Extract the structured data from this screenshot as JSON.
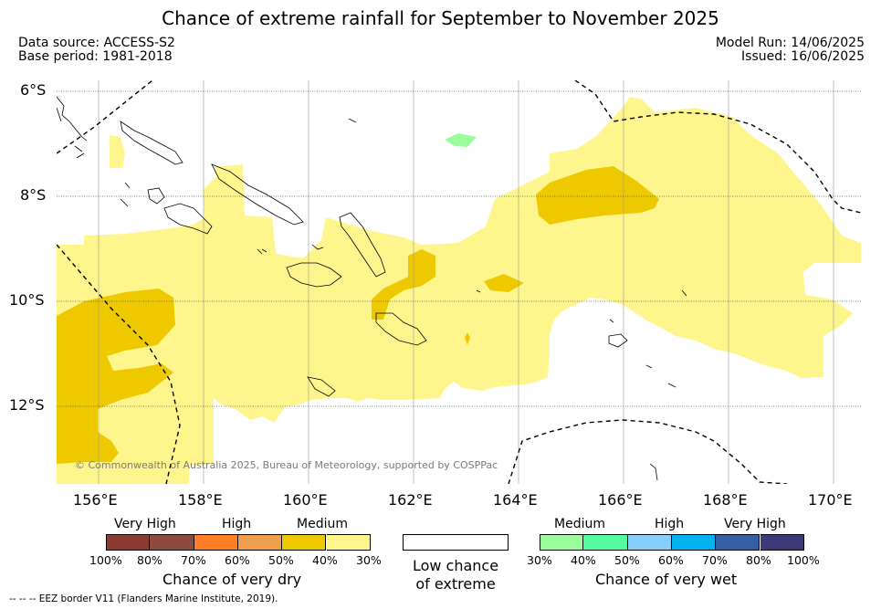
{
  "title": "Chance of extreme rainfall for September to November 2025",
  "meta": {
    "data_source": "Data source: ACCESS-S2",
    "base_period": "Base period: 1981-2018",
    "model_run": "Model Run: 14/06/2025",
    "issued": "Issued: 16/06/2025"
  },
  "map": {
    "lat_labels": [
      "6°S",
      "8°S",
      "10°S",
      "12°S"
    ],
    "lon_labels": [
      "156°E",
      "158°E",
      "160°E",
      "162°E",
      "164°E",
      "166°E",
      "168°E",
      "170°E"
    ],
    "copyright": "© Commonwealth of Australia 2025, Bureau of Meteorology, supported by COSPPac"
  },
  "legend": {
    "dry": {
      "categories": [
        "Very High",
        "High",
        "Medium"
      ],
      "ticks": [
        "100%",
        "80%",
        "70%",
        "60%",
        "50%",
        "40%",
        "30%"
      ],
      "colors": [
        "#8b3a32",
        "#8c4b3c",
        "#ff7f24",
        "#ee9e4e",
        "#eec900",
        "#fef68c"
      ],
      "title": "Chance of very dry"
    },
    "low": {
      "title_line1": "Low chance",
      "title_line2": "of extreme",
      "color": "#ffffff"
    },
    "wet": {
      "categories": [
        "Medium",
        "High",
        "Very High"
      ],
      "ticks": [
        "30%",
        "40%",
        "50%",
        "60%",
        "70%",
        "80%",
        "100%"
      ],
      "colors": [
        "#9afc9a",
        "#55fc9e",
        "#87cefa",
        "#00b2ee",
        "#3460a3",
        "#3d3a7a"
      ],
      "title": "Chance of very wet"
    }
  },
  "footer": {
    "eez_note": "-- -- -- EEZ border V11 (Flanders Marine Institute, 2019)."
  }
}
